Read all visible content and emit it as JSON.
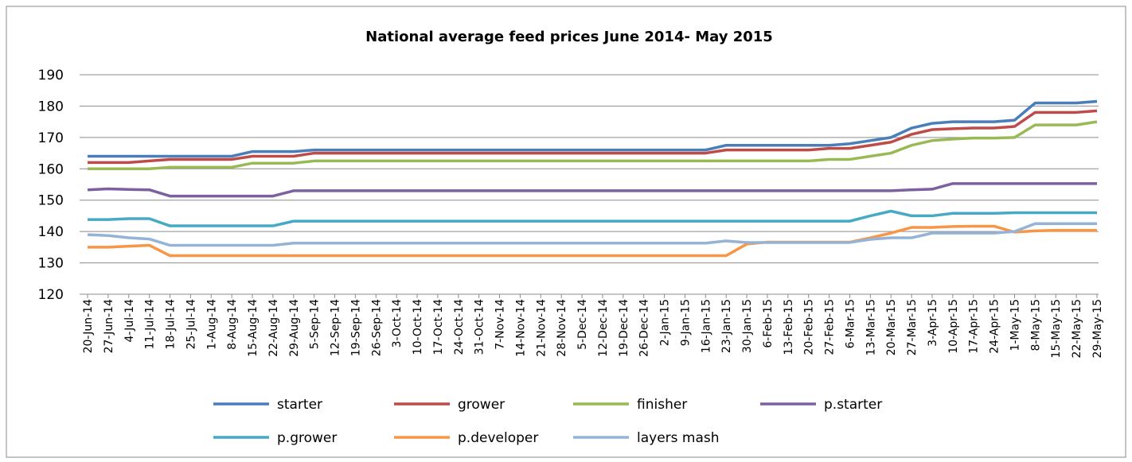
{
  "chart_data": {
    "type": "line",
    "title": "National average feed prices June 2014- May 2015",
    "x": [
      "20-Jun-14",
      "27-Jun-14",
      "4-Jul-14",
      "11-Jul-14",
      "18-Jul-14",
      "25-Jul-14",
      "1-Aug-14",
      "8-Aug-14",
      "15-Aug-14",
      "22-Aug-14",
      "29-Aug-14",
      "5-Sep-14",
      "12-Sep-14",
      "19-Sep-14",
      "26-Sep-14",
      "3-Oct-14",
      "10-Oct-14",
      "17-Oct-14",
      "24-Oct-14",
      "31-Oct-14",
      "7-Nov-14",
      "14-Nov-14",
      "21-Nov-14",
      "28-Nov-14",
      "5-Dec-14",
      "12-Dec-14",
      "19-Dec-14",
      "26-Dec-14",
      "2-Jan-15",
      "9-Jan-15",
      "16-Jan-15",
      "23-Jan-15",
      "30-Jan-15",
      "6-Feb-15",
      "13-Feb-15",
      "20-Feb-15",
      "27-Feb-15",
      "6-Mar-15",
      "13-Mar-15",
      "20-Mar-15",
      "27-Mar-15",
      "3-Apr-15",
      "10-Apr-15",
      "17-Apr-15",
      "24-Apr-15",
      "1-May-15",
      "8-May-15",
      "15-May-15",
      "22-May-15",
      "29-May-15"
    ],
    "series": [
      {
        "name": "starter",
        "color": "#4a7ebb",
        "values": [
          164,
          164,
          164,
          164,
          164,
          164,
          164,
          164,
          165.5,
          165.5,
          165.5,
          166,
          166,
          166,
          166,
          166,
          166,
          166,
          166,
          166,
          166,
          166,
          166,
          166,
          166,
          166,
          166,
          166,
          166,
          166,
          166,
          167.5,
          167.5,
          167.5,
          167.5,
          167.5,
          167.5,
          168,
          169,
          170,
          173,
          174.5,
          175,
          175,
          175,
          175.5,
          181,
          181,
          181,
          181.5
        ]
      },
      {
        "name": "grower",
        "color": "#be4b48",
        "values": [
          162,
          162,
          162,
          162.5,
          163,
          163,
          163,
          163,
          164,
          164,
          164,
          165,
          165,
          165,
          165,
          165,
          165,
          165,
          165,
          165,
          165,
          165,
          165,
          165,
          165,
          165,
          165,
          165,
          165,
          165,
          165,
          166,
          166,
          166,
          166,
          166,
          166.5,
          166.5,
          167.5,
          168.5,
          171,
          172.5,
          172.8,
          173,
          173,
          173.5,
          178,
          178,
          178,
          178.5
        ]
      },
      {
        "name": "finisher",
        "color": "#98b954",
        "values": [
          160,
          160,
          160,
          160,
          160.5,
          160.5,
          160.5,
          160.5,
          161.8,
          161.8,
          161.8,
          162.5,
          162.5,
          162.5,
          162.5,
          162.5,
          162.5,
          162.5,
          162.5,
          162.5,
          162.5,
          162.5,
          162.5,
          162.5,
          162.5,
          162.5,
          162.5,
          162.5,
          162.5,
          162.5,
          162.5,
          162.5,
          162.5,
          162.5,
          162.5,
          162.5,
          163,
          163,
          164,
          165,
          167.5,
          169,
          169.5,
          169.8,
          169.8,
          170,
          174,
          174,
          174,
          175
        ]
      },
      {
        "name": "p.starter",
        "color": "#7d60a0",
        "values": [
          153.3,
          153.6,
          153.4,
          153.3,
          151.3,
          151.3,
          151.3,
          151.3,
          151.3,
          151.3,
          153,
          153,
          153,
          153,
          153,
          153,
          153,
          153,
          153,
          153,
          153,
          153,
          153,
          153,
          153,
          153,
          153,
          153,
          153,
          153,
          153,
          153,
          153,
          153,
          153,
          153,
          153,
          153,
          153,
          153,
          153.3,
          153.5,
          155.3,
          155.3,
          155.3,
          155.3,
          155.3,
          155.3,
          155.3,
          155.3
        ]
      },
      {
        "name": "p.grower",
        "color": "#46aac5",
        "values": [
          143.8,
          143.8,
          144.1,
          144.1,
          141.8,
          141.8,
          141.8,
          141.8,
          141.8,
          141.8,
          143.3,
          143.3,
          143.3,
          143.3,
          143.3,
          143.3,
          143.3,
          143.3,
          143.3,
          143.3,
          143.3,
          143.3,
          143.3,
          143.3,
          143.3,
          143.3,
          143.3,
          143.3,
          143.3,
          143.3,
          143.3,
          143.3,
          143.3,
          143.3,
          143.3,
          143.3,
          143.3,
          143.3,
          145,
          146.5,
          145,
          145,
          145.8,
          145.8,
          145.8,
          146,
          146,
          146,
          146,
          146
        ]
      },
      {
        "name": "p.developer",
        "color": "#f79646",
        "values": [
          135,
          135,
          135.3,
          135.6,
          132.3,
          132.3,
          132.3,
          132.3,
          132.3,
          132.3,
          132.3,
          132.3,
          132.3,
          132.3,
          132.3,
          132.3,
          132.3,
          132.3,
          132.3,
          132.3,
          132.3,
          132.3,
          132.3,
          132.3,
          132.3,
          132.3,
          132.3,
          132.3,
          132.3,
          132.3,
          132.3,
          132.3,
          136,
          136.6,
          136.6,
          136.6,
          136.6,
          136.6,
          138,
          139.5,
          141.3,
          141.3,
          141.6,
          141.7,
          141.7,
          139.8,
          140.2,
          140.4,
          140.4,
          140.4
        ]
      },
      {
        "name": "layers mash",
        "color": "#95b3d7",
        "values": [
          139,
          138.7,
          138,
          137.6,
          135.6,
          135.6,
          135.6,
          135.6,
          135.6,
          135.6,
          136.3,
          136.3,
          136.3,
          136.3,
          136.3,
          136.3,
          136.3,
          136.3,
          136.3,
          136.3,
          136.3,
          136.3,
          136.3,
          136.3,
          136.3,
          136.3,
          136.3,
          136.3,
          136.3,
          136.3,
          136.3,
          137,
          136.5,
          136.5,
          136.5,
          136.5,
          136.5,
          136.5,
          137.5,
          138,
          138,
          139.5,
          139.5,
          139.5,
          139.5,
          140,
          142.5,
          142.5,
          142.5,
          142.5
        ]
      }
    ],
    "ylim": [
      120,
      190
    ],
    "yticks": [
      120,
      130,
      140,
      150,
      160,
      170,
      180,
      190
    ],
    "grid": true,
    "legend": "bottom"
  }
}
